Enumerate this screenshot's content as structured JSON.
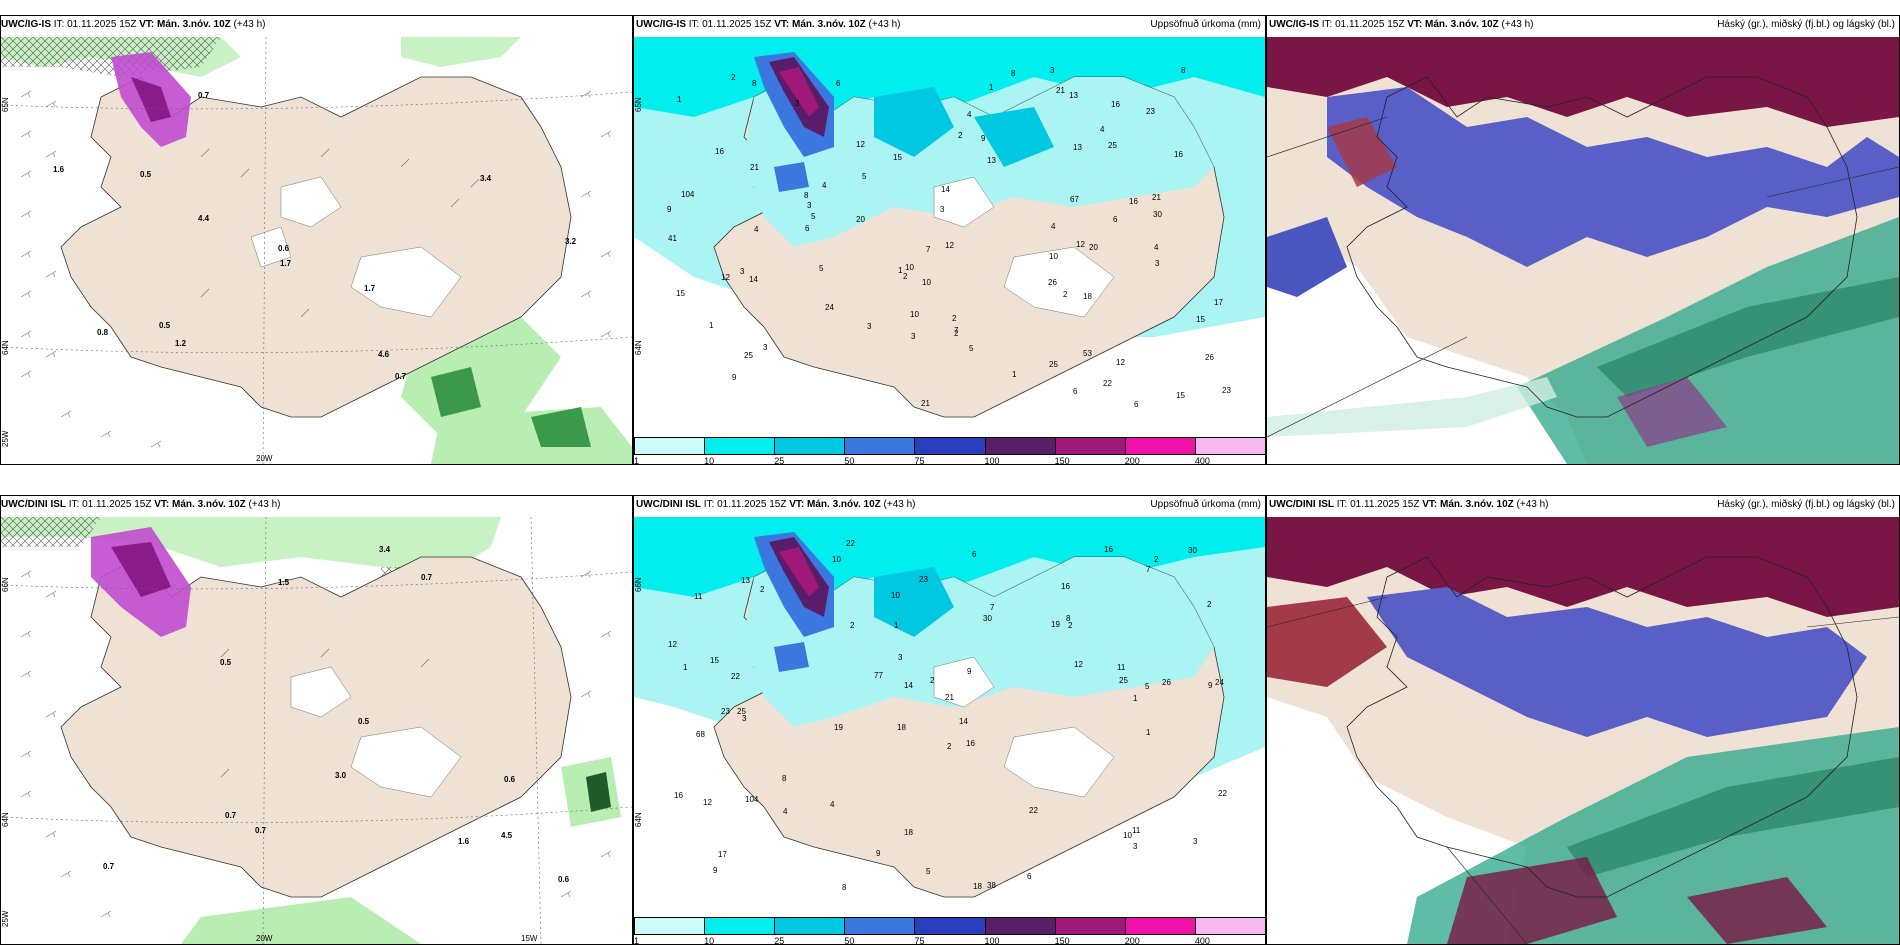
{
  "colors": {
    "land": "#efe1d3",
    "snow_land": "#ffffff",
    "precip_light": "#aaf4f4",
    "precip_cyan": "#00f0f0",
    "precip_mid": "#22cce6",
    "precip_blue": "#4e6fe0",
    "precip_deep": "#6b2368",
    "precip_magenta": "#c8147a",
    "cloud_high": "#7a1646",
    "cloud_mid": "#5a5fc8",
    "cloud_low": "#2aa68a",
    "green_precip": "#9ee89a",
    "purple_precip": "#c04bd0"
  },
  "rows": [
    {
      "model": "UWC/IG-IS",
      "it_label": "IT:",
      "it_value": "01.11.2025 15Z",
      "vt_label": "VT:",
      "vt_value": "Mán. 3.nóv. 10Z",
      "lead": "(+43 h)",
      "mid_title": "Uppsöfnuð úrkoma (mm)",
      "right_title": "Háský (gr.), miðský (fj.bl.) og lágský (bl.)",
      "axis_labels": {
        "lat_top": "65N",
        "lat_mid": "64N",
        "lon_left": "25W",
        "lon_mid": "20W"
      },
      "left_values": [
        "0.7",
        "0.7",
        "0.5",
        "0.5",
        "3.4",
        "4.6",
        "3.2",
        "4.4",
        "1.7",
        "1.2",
        "0.8",
        "1.6",
        "0.6",
        "1.7"
      ],
      "mid_values": [
        "26",
        "17",
        "16",
        "15",
        "25",
        "25",
        "21",
        "14",
        "26",
        "22",
        "12",
        "10",
        "15",
        "18",
        "24",
        "15",
        "23",
        "12",
        "16",
        "15",
        "10",
        "41",
        "67",
        "21",
        "30",
        "25",
        "21",
        "13",
        "23",
        "14",
        "16",
        "8",
        "104",
        "53",
        "20",
        "9",
        "13",
        "12",
        "20",
        "6",
        "10",
        "5",
        "4",
        "21",
        "9",
        "12",
        "8",
        "4",
        "7",
        "8",
        "10",
        "8",
        "3",
        "12",
        "1",
        "5",
        "13",
        "2",
        "6",
        "7",
        "4",
        "3",
        "2",
        "1",
        "2",
        "1",
        "4",
        "3",
        "2",
        "1",
        "6",
        "4",
        "3",
        "3",
        "5",
        "3",
        "6",
        "2",
        "3",
        "16",
        "2",
        "9",
        "4",
        "5",
        "1",
        "3",
        "3",
        "6"
      ]
    },
    {
      "model": "UWC/DINI ISL",
      "it_label": "IT:",
      "it_value": "01.11.2025 15Z",
      "vt_label": "VT:",
      "vt_value": "Mán. 3.nóv. 10Z",
      "lead": "(+43 h)",
      "mid_title": "Uppsöfnuð úrkoma (mm)",
      "right_title": "Háský (gr.), miðský (fj.bl.) og lágský (bl.)",
      "axis_labels": {
        "lat_top": "66N",
        "lat_mid": "64N",
        "lon_left": "25W",
        "lon_mid": "20W",
        "lon_right": "15W"
      },
      "left_values": [
        "0.7",
        "0.6",
        "0.5",
        "3.0",
        "1.5",
        "3.4",
        "4.5",
        "0.7",
        "1.6",
        "0.7",
        "0.6",
        "0.5",
        "0.7"
      ],
      "mid_values": [
        "22",
        "16",
        "9",
        "18",
        "16",
        "25",
        "11",
        "19",
        "68",
        "30",
        "21",
        "9",
        "10",
        "19",
        "18",
        "38",
        "18",
        "16",
        "12",
        "8",
        "22",
        "23",
        "24",
        "26",
        "16",
        "15",
        "14",
        "25",
        "11",
        "12",
        "10",
        "7",
        "104",
        "77",
        "22",
        "22",
        "11",
        "9",
        "30",
        "23",
        "17",
        "8",
        "6",
        "13",
        "5",
        "2",
        "3",
        "8",
        "12",
        "14",
        "10",
        "1",
        "9",
        "7",
        "6",
        "4",
        "3",
        "2",
        "2",
        "1",
        "3",
        "1",
        "2",
        "4",
        "2",
        "1",
        "5",
        "3",
        "2",
        "2"
      ]
    }
  ],
  "colorbar": {
    "ticks": [
      "1",
      "10",
      "25",
      "50",
      "75",
      "100",
      "150",
      "200",
      "400"
    ],
    "colors": [
      "#ccf9f9",
      "#00eeee",
      "#00c8e0",
      "#3a78e0",
      "#2b3ec0",
      "#5a1d6a",
      "#a0197a",
      "#ee11aa",
      "#f7b8f0"
    ]
  }
}
